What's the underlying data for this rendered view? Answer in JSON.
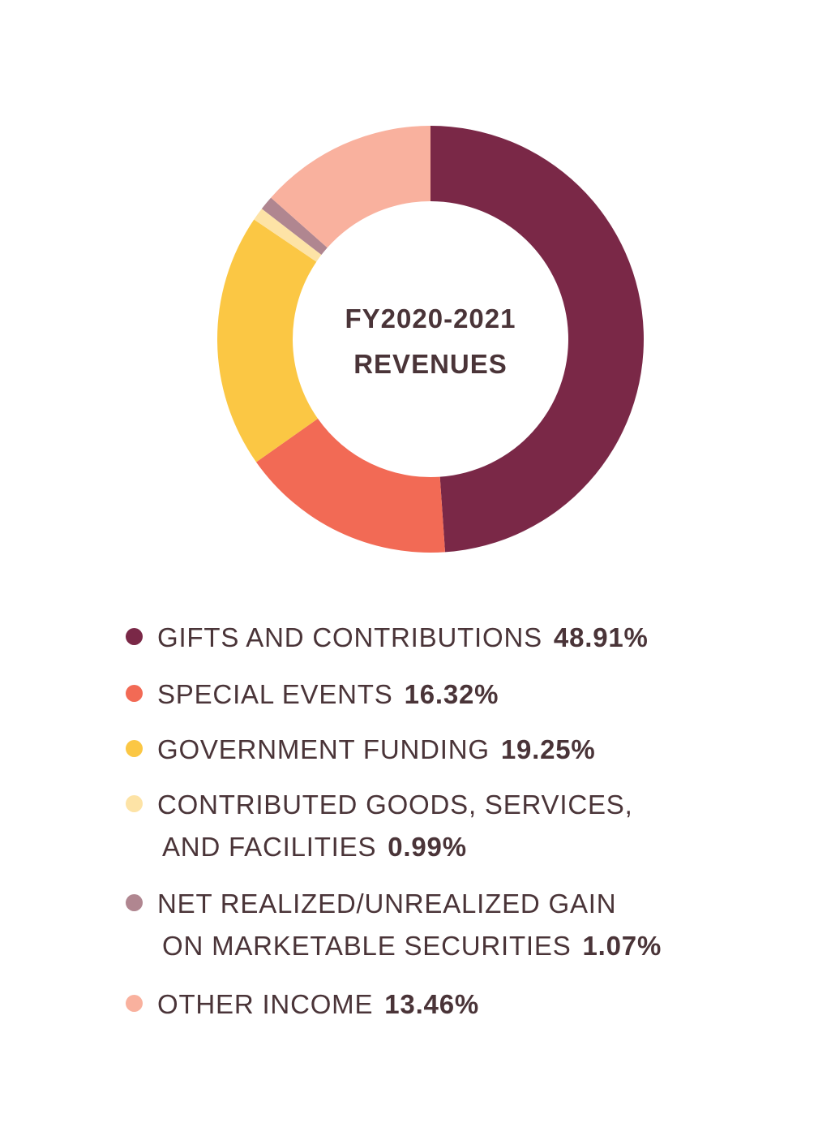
{
  "chart_data": {
    "type": "pie",
    "style": "donut",
    "title": "FY2020-2021 REVENUES",
    "title_lines": [
      "FY2020-2021",
      "REVENUES"
    ],
    "slices": [
      {
        "label": "GIFTS AND CONTRIBUTIONS",
        "label_lines": [
          "GIFTS AND CONTRIBUTIONS"
        ],
        "value": 48.91,
        "value_label": "48.91%",
        "color": "#7a2847"
      },
      {
        "label": "SPECIAL EVENTS",
        "label_lines": [
          "SPECIAL EVENTS"
        ],
        "value": 16.32,
        "value_label": "16.32%",
        "color": "#f26a55"
      },
      {
        "label": "GOVERNMENT FUNDING",
        "label_lines": [
          "GOVERNMENT FUNDING"
        ],
        "value": 19.25,
        "value_label": "19.25%",
        "color": "#fbc744"
      },
      {
        "label": "CONTRIBUTED GOODS, SERVICES, AND FACILITIES",
        "label_lines": [
          "CONTRIBUTED GOODS, SERVICES,",
          "AND FACILITIES"
        ],
        "value": 0.99,
        "value_label": "0.99%",
        "color": "#fde3a6"
      },
      {
        "label": "NET REALIZED/UNREALIZED GAIN ON MARKETABLE SECURITIES",
        "label_lines": [
          "NET REALIZED/UNREALIZED GAIN",
          "ON MARKETABLE SECURITIES"
        ],
        "value": 1.07,
        "value_label": "1.07%",
        "color": "#b08690"
      },
      {
        "label": "OTHER INCOME",
        "label_lines": [
          "OTHER INCOME"
        ],
        "value": 13.46,
        "value_label": "13.46%",
        "color": "#f9b19e"
      }
    ],
    "legend_position": "bottom"
  }
}
